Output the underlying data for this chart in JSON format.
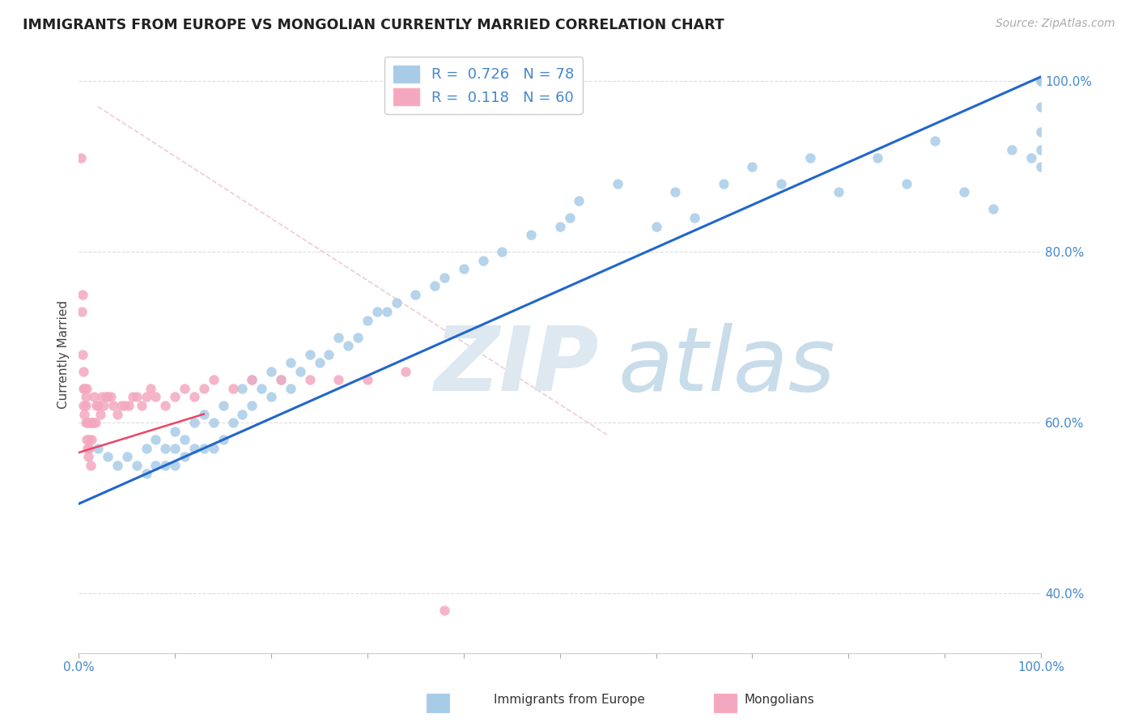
{
  "title": "IMMIGRANTS FROM EUROPE VS MONGOLIAN CURRENTLY MARRIED CORRELATION CHART",
  "source_text": "Source: ZipAtlas.com",
  "ylabel": "Currently Married",
  "europe_color": "#a8cce8",
  "mongolia_color": "#f4a8c0",
  "europe_line_color": "#2266cc",
  "mongolia_line_color": "#ee4466",
  "ref_line_color": "#ddaaaa",
  "grid_color": "#dddddd",
  "tick_color": "#4488cc",
  "title_color": "#222222",
  "source_color": "#aaaaaa",
  "watermark_zip_color": "#dde8f0",
  "watermark_atlas_color": "#c8dcea",
  "legend_blue_r": "R = 0.726",
  "legend_blue_n": "N = 78",
  "legend_pink_r": "R =  0.118",
  "legend_pink_n": "N = 60",
  "xlim": [
    0.0,
    1.0
  ],
  "ylim": [
    0.33,
    1.03
  ],
  "ytick_positions": [
    0.4,
    0.6,
    0.8,
    1.0
  ],
  "europe_line_x": [
    0.0,
    1.0
  ],
  "europe_line_y": [
    0.505,
    1.005
  ],
  "mongolia_line_x": [
    0.0,
    0.13
  ],
  "mongolia_line_y": [
    0.565,
    0.61
  ],
  "ref_line_x": [
    0.02,
    0.55
  ],
  "ref_line_y": [
    0.97,
    0.585
  ],
  "blue_x": [
    0.02,
    0.03,
    0.04,
    0.05,
    0.06,
    0.07,
    0.07,
    0.08,
    0.08,
    0.09,
    0.09,
    0.1,
    0.1,
    0.1,
    0.11,
    0.11,
    0.12,
    0.12,
    0.13,
    0.13,
    0.14,
    0.14,
    0.15,
    0.15,
    0.16,
    0.17,
    0.17,
    0.18,
    0.18,
    0.19,
    0.2,
    0.2,
    0.21,
    0.22,
    0.22,
    0.23,
    0.24,
    0.25,
    0.26,
    0.27,
    0.28,
    0.29,
    0.3,
    0.31,
    0.32,
    0.33,
    0.35,
    0.37,
    0.38,
    0.4,
    0.42,
    0.44,
    0.47,
    0.5,
    0.51,
    0.52,
    0.56,
    0.6,
    0.62,
    0.64,
    0.67,
    0.7,
    0.73,
    0.76,
    0.79,
    0.83,
    0.86,
    0.89,
    0.92,
    0.95,
    0.97,
    0.99,
    1.0,
    1.0,
    1.0,
    1.0,
    1.0,
    1.0
  ],
  "blue_y": [
    0.57,
    0.56,
    0.55,
    0.56,
    0.55,
    0.54,
    0.57,
    0.55,
    0.58,
    0.55,
    0.57,
    0.55,
    0.57,
    0.59,
    0.56,
    0.58,
    0.57,
    0.6,
    0.57,
    0.61,
    0.57,
    0.6,
    0.58,
    0.62,
    0.6,
    0.61,
    0.64,
    0.62,
    0.65,
    0.64,
    0.63,
    0.66,
    0.65,
    0.64,
    0.67,
    0.66,
    0.68,
    0.67,
    0.68,
    0.7,
    0.69,
    0.7,
    0.72,
    0.73,
    0.73,
    0.74,
    0.75,
    0.76,
    0.77,
    0.78,
    0.79,
    0.8,
    0.82,
    0.83,
    0.84,
    0.86,
    0.88,
    0.83,
    0.87,
    0.84,
    0.88,
    0.9,
    0.88,
    0.91,
    0.87,
    0.91,
    0.88,
    0.93,
    0.87,
    0.85,
    0.92,
    0.91,
    0.9,
    0.92,
    0.94,
    0.97,
    1.0,
    1.0
  ],
  "pink_x": [
    0.002,
    0.003,
    0.004,
    0.004,
    0.005,
    0.005,
    0.005,
    0.006,
    0.006,
    0.007,
    0.007,
    0.007,
    0.008,
    0.008,
    0.009,
    0.009,
    0.01,
    0.01,
    0.011,
    0.011,
    0.012,
    0.012,
    0.013,
    0.014,
    0.015,
    0.016,
    0.017,
    0.018,
    0.02,
    0.022,
    0.024,
    0.026,
    0.028,
    0.03,
    0.033,
    0.036,
    0.04,
    0.044,
    0.048,
    0.052,
    0.056,
    0.06,
    0.065,
    0.07,
    0.075,
    0.08,
    0.09,
    0.1,
    0.11,
    0.12,
    0.13,
    0.14,
    0.16,
    0.18,
    0.21,
    0.24,
    0.27,
    0.3,
    0.34,
    0.38
  ],
  "pink_y": [
    0.91,
    0.73,
    0.68,
    0.75,
    0.64,
    0.62,
    0.66,
    0.64,
    0.61,
    0.63,
    0.6,
    0.62,
    0.64,
    0.58,
    0.6,
    0.57,
    0.6,
    0.56,
    0.58,
    0.57,
    0.6,
    0.55,
    0.58,
    0.6,
    0.6,
    0.63,
    0.6,
    0.62,
    0.62,
    0.61,
    0.63,
    0.62,
    0.63,
    0.63,
    0.63,
    0.62,
    0.61,
    0.62,
    0.62,
    0.62,
    0.63,
    0.63,
    0.62,
    0.63,
    0.64,
    0.63,
    0.62,
    0.63,
    0.64,
    0.63,
    0.64,
    0.65,
    0.64,
    0.65,
    0.65,
    0.65,
    0.65,
    0.65,
    0.66,
    0.38
  ]
}
